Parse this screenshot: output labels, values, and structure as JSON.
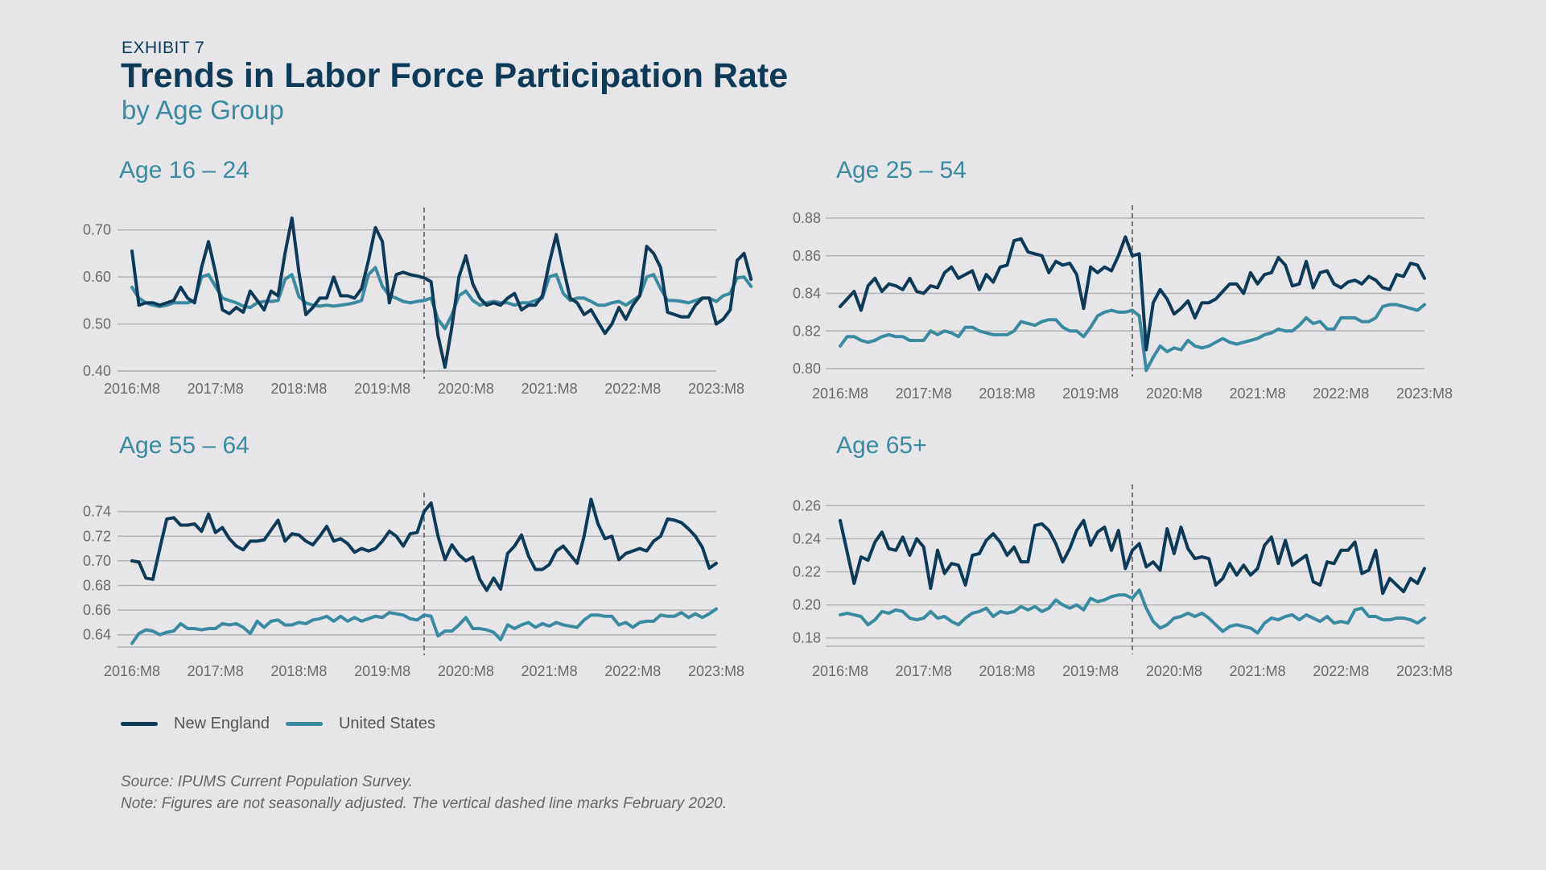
{
  "header": {
    "exhibit": "EXHIBIT 7",
    "title": "Trends in Labor Force Participation Rate",
    "subtitle": "by Age Group"
  },
  "colors": {
    "new_england": "#0d3a56",
    "united_states": "#3a8aa0",
    "grid": "#b3b3b3",
    "marker": "#777777"
  },
  "legend": {
    "new_england": "New England",
    "united_states": "United States"
  },
  "notes": {
    "source": "Source: IPUMS Current Population Survey.",
    "note": "Note: Figures are not seasonally adjusted. The vertical dashed line marks February 2020."
  },
  "chart_data": [
    {
      "type": "line",
      "title": "Age 16 – 24",
      "x_start": "2016:M8",
      "x_end": "2023:M8",
      "x_ticks": [
        "2016:M8",
        "2017:M8",
        "2018:M8",
        "2019:M8",
        "2020:M8",
        "2021:M8",
        "2022:M8",
        "2023:M8"
      ],
      "vertical_marker": "2020:M2",
      "ylim": [
        0.4,
        0.72
      ],
      "yticks": [
        "0.40",
        "0.50",
        "0.60",
        "0.70"
      ],
      "series": [
        {
          "name": "New England",
          "values": [
            0.655,
            0.54,
            0.545,
            0.545,
            0.54,
            0.545,
            0.55,
            0.578,
            0.555,
            0.545,
            0.62,
            0.675,
            0.61,
            0.53,
            0.522,
            0.535,
            0.525,
            0.57,
            0.55,
            0.53,
            0.57,
            0.56,
            0.65,
            0.725,
            0.61,
            0.52,
            0.535,
            0.555,
            0.555,
            0.6,
            0.56,
            0.56,
            0.555,
            0.575,
            0.635,
            0.705,
            0.675,
            0.545,
            0.605,
            0.61,
            0.605,
            0.602,
            0.598,
            0.59,
            0.475,
            0.408,
            0.495,
            0.6,
            0.645,
            0.585,
            0.555,
            0.54,
            0.545,
            0.54,
            0.555,
            0.565,
            0.53,
            0.54,
            0.54,
            0.56,
            0.63,
            0.69,
            0.62,
            0.555,
            0.545,
            0.52,
            0.53,
            0.505,
            0.48,
            0.5,
            0.535,
            0.51,
            0.54,
            0.56,
            0.665,
            0.65,
            0.62,
            0.525,
            0.52,
            0.515,
            0.515,
            0.54,
            0.555,
            0.555,
            0.5,
            0.51,
            0.53,
            0.635,
            0.65,
            0.595
          ]
        },
        {
          "name": "United States",
          "values": [
            0.578,
            0.555,
            0.545,
            0.54,
            0.537,
            0.54,
            0.545,
            0.545,
            0.545,
            0.55,
            0.6,
            0.605,
            0.58,
            0.555,
            0.55,
            0.545,
            0.538,
            0.535,
            0.545,
            0.548,
            0.548,
            0.55,
            0.595,
            0.605,
            0.558,
            0.545,
            0.54,
            0.538,
            0.54,
            0.538,
            0.54,
            0.542,
            0.545,
            0.55,
            0.605,
            0.62,
            0.58,
            0.56,
            0.555,
            0.548,
            0.545,
            0.548,
            0.55,
            0.555,
            0.51,
            0.49,
            0.52,
            0.56,
            0.57,
            0.55,
            0.54,
            0.545,
            0.548,
            0.545,
            0.545,
            0.54,
            0.545,
            0.545,
            0.55,
            0.555,
            0.6,
            0.605,
            0.565,
            0.55,
            0.555,
            0.555,
            0.548,
            0.54,
            0.54,
            0.545,
            0.548,
            0.54,
            0.55,
            0.56,
            0.6,
            0.605,
            0.575,
            0.55,
            0.55,
            0.548,
            0.545,
            0.55,
            0.555,
            0.555,
            0.548,
            0.56,
            0.565,
            0.598,
            0.6,
            0.58
          ]
        }
      ]
    },
    {
      "type": "line",
      "title": "Age 25 – 54",
      "x_start": "2016:M8",
      "x_end": "2023:M8",
      "x_ticks": [
        "2016:M8",
        "2017:M8",
        "2018:M8",
        "2019:M8",
        "2020:M8",
        "2021:M8",
        "2022:M8",
        "2023:M8"
      ],
      "vertical_marker": "2020:M2",
      "ylim": [
        0.8,
        0.88
      ],
      "yticks": [
        "0.80",
        "0.82",
        "0.84",
        "0.86",
        "0.88"
      ],
      "series": [
        {
          "name": "New England",
          "values": [
            0.833,
            0.837,
            0.841,
            0.831,
            0.844,
            0.848,
            0.841,
            0.845,
            0.844,
            0.842,
            0.848,
            0.841,
            0.84,
            0.844,
            0.843,
            0.851,
            0.854,
            0.848,
            0.85,
            0.852,
            0.842,
            0.85,
            0.846,
            0.854,
            0.855,
            0.868,
            0.869,
            0.862,
            0.861,
            0.86,
            0.851,
            0.857,
            0.855,
            0.856,
            0.85,
            0.832,
            0.854,
            0.851,
            0.854,
            0.852,
            0.86,
            0.87,
            0.86,
            0.861,
            0.81,
            0.835,
            0.842,
            0.837,
            0.829,
            0.832,
            0.836,
            0.827,
            0.835,
            0.835,
            0.837,
            0.841,
            0.845,
            0.845,
            0.84,
            0.851,
            0.845,
            0.85,
            0.851,
            0.859,
            0.855,
            0.844,
            0.845,
            0.857,
            0.843,
            0.851,
            0.852,
            0.845,
            0.843,
            0.846,
            0.847,
            0.845,
            0.849,
            0.847,
            0.843,
            0.842,
            0.85,
            0.849,
            0.856,
            0.855,
            0.848
          ]
        },
        {
          "name": "United States",
          "values": [
            0.812,
            0.817,
            0.817,
            0.815,
            0.814,
            0.815,
            0.817,
            0.818,
            0.817,
            0.817,
            0.815,
            0.815,
            0.815,
            0.82,
            0.818,
            0.82,
            0.819,
            0.817,
            0.822,
            0.822,
            0.82,
            0.819,
            0.818,
            0.818,
            0.818,
            0.82,
            0.825,
            0.824,
            0.823,
            0.825,
            0.826,
            0.826,
            0.822,
            0.82,
            0.82,
            0.817,
            0.822,
            0.828,
            0.83,
            0.831,
            0.83,
            0.83,
            0.831,
            0.828,
            0.799,
            0.806,
            0.812,
            0.809,
            0.811,
            0.81,
            0.815,
            0.812,
            0.811,
            0.812,
            0.814,
            0.816,
            0.814,
            0.813,
            0.814,
            0.815,
            0.816,
            0.818,
            0.819,
            0.821,
            0.82,
            0.82,
            0.823,
            0.827,
            0.824,
            0.825,
            0.821,
            0.821,
            0.827,
            0.827,
            0.827,
            0.825,
            0.825,
            0.827,
            0.833,
            0.834,
            0.834,
            0.833,
            0.832,
            0.831,
            0.834
          ]
        }
      ]
    },
    {
      "type": "line",
      "title": "Age 55 – 64",
      "x_start": "2016:M8",
      "x_end": "2023:M8",
      "x_ticks": [
        "2016:M8",
        "2017:M8",
        "2018:M8",
        "2019:M8",
        "2020:M8",
        "2021:M8",
        "2022:M8",
        "2023:M8"
      ],
      "vertical_marker": "2020:M2",
      "ylim": [
        0.63,
        0.745
      ],
      "yticks": [
        "0.64",
        "0.66",
        "0.68",
        "0.70",
        "0.72",
        "0.74"
      ],
      "series": [
        {
          "name": "New England",
          "values": [
            0.7,
            0.699,
            0.686,
            0.685,
            0.71,
            0.734,
            0.735,
            0.729,
            0.729,
            0.73,
            0.724,
            0.738,
            0.723,
            0.727,
            0.718,
            0.712,
            0.709,
            0.716,
            0.716,
            0.717,
            0.725,
            0.733,
            0.716,
            0.722,
            0.721,
            0.716,
            0.713,
            0.72,
            0.728,
            0.716,
            0.718,
            0.714,
            0.707,
            0.71,
            0.708,
            0.71,
            0.716,
            0.724,
            0.72,
            0.712,
            0.722,
            0.723,
            0.74,
            0.747,
            0.72,
            0.701,
            0.713,
            0.705,
            0.7,
            0.703,
            0.685,
            0.676,
            0.686,
            0.677,
            0.706,
            0.712,
            0.721,
            0.704,
            0.693,
            0.693,
            0.697,
            0.708,
            0.712,
            0.705,
            0.698,
            0.72,
            0.75,
            0.73,
            0.718,
            0.72,
            0.701,
            0.706,
            0.708,
            0.71,
            0.708,
            0.716,
            0.72,
            0.734,
            0.733,
            0.731,
            0.726,
            0.72,
            0.711,
            0.694,
            0.698
          ]
        },
        {
          "name": "United States",
          "values": [
            0.633,
            0.641,
            0.644,
            0.643,
            0.64,
            0.642,
            0.643,
            0.649,
            0.645,
            0.645,
            0.644,
            0.645,
            0.645,
            0.649,
            0.648,
            0.649,
            0.646,
            0.641,
            0.651,
            0.646,
            0.651,
            0.652,
            0.648,
            0.648,
            0.65,
            0.649,
            0.652,
            0.653,
            0.655,
            0.651,
            0.655,
            0.651,
            0.654,
            0.651,
            0.653,
            0.655,
            0.654,
            0.658,
            0.657,
            0.656,
            0.653,
            0.652,
            0.656,
            0.655,
            0.639,
            0.643,
            0.643,
            0.648,
            0.654,
            0.645,
            0.645,
            0.644,
            0.642,
            0.636,
            0.648,
            0.645,
            0.648,
            0.65,
            0.646,
            0.649,
            0.647,
            0.65,
            0.648,
            0.647,
            0.646,
            0.652,
            0.656,
            0.656,
            0.655,
            0.655,
            0.648,
            0.65,
            0.646,
            0.65,
            0.651,
            0.651,
            0.656,
            0.655,
            0.655,
            0.658,
            0.654,
            0.657,
            0.654,
            0.657,
            0.661
          ]
        }
      ]
    },
    {
      "type": "line",
      "title": "Age 65+",
      "x_start": "2016:M8",
      "x_end": "2023:M8",
      "x_ticks": [
        "2016:M8",
        "2017:M8",
        "2018:M8",
        "2019:M8",
        "2020:M8",
        "2021:M8",
        "2022:M8",
        "2023:M8"
      ],
      "vertical_marker": "2020:M2",
      "ylim": [
        0.175,
        0.265
      ],
      "yticks": [
        "0.18",
        "0.20",
        "0.22",
        "0.24",
        "0.26"
      ],
      "series": [
        {
          "name": "New England",
          "values": [
            0.251,
            0.232,
            0.213,
            0.229,
            0.227,
            0.238,
            0.244,
            0.234,
            0.233,
            0.241,
            0.23,
            0.24,
            0.235,
            0.21,
            0.233,
            0.219,
            0.225,
            0.224,
            0.212,
            0.23,
            0.231,
            0.239,
            0.243,
            0.238,
            0.23,
            0.235,
            0.226,
            0.226,
            0.248,
            0.249,
            0.245,
            0.237,
            0.226,
            0.234,
            0.245,
            0.251,
            0.236,
            0.244,
            0.247,
            0.233,
            0.245,
            0.222,
            0.233,
            0.237,
            0.223,
            0.226,
            0.221,
            0.246,
            0.231,
            0.247,
            0.234,
            0.228,
            0.229,
            0.228,
            0.212,
            0.216,
            0.225,
            0.218,
            0.224,
            0.218,
            0.222,
            0.236,
            0.241,
            0.225,
            0.239,
            0.224,
            0.227,
            0.23,
            0.214,
            0.212,
            0.226,
            0.225,
            0.233,
            0.233,
            0.238,
            0.219,
            0.221,
            0.233,
            0.207,
            0.216,
            0.212,
            0.208,
            0.216,
            0.213,
            0.222
          ]
        },
        {
          "name": "United States",
          "values": [
            0.194,
            0.195,
            0.194,
            0.193,
            0.188,
            0.191,
            0.196,
            0.195,
            0.197,
            0.196,
            0.192,
            0.191,
            0.192,
            0.196,
            0.192,
            0.193,
            0.19,
            0.188,
            0.192,
            0.195,
            0.196,
            0.198,
            0.193,
            0.196,
            0.195,
            0.196,
            0.199,
            0.197,
            0.199,
            0.196,
            0.198,
            0.203,
            0.2,
            0.198,
            0.2,
            0.197,
            0.204,
            0.202,
            0.203,
            0.205,
            0.206,
            0.206,
            0.204,
            0.209,
            0.198,
            0.19,
            0.186,
            0.188,
            0.192,
            0.193,
            0.195,
            0.193,
            0.195,
            0.192,
            0.188,
            0.184,
            0.187,
            0.188,
            0.187,
            0.186,
            0.183,
            0.189,
            0.192,
            0.191,
            0.193,
            0.194,
            0.191,
            0.194,
            0.192,
            0.19,
            0.193,
            0.189,
            0.19,
            0.189,
            0.197,
            0.198,
            0.193,
            0.193,
            0.191,
            0.191,
            0.192,
            0.192,
            0.191,
            0.189,
            0.192
          ]
        }
      ]
    }
  ]
}
